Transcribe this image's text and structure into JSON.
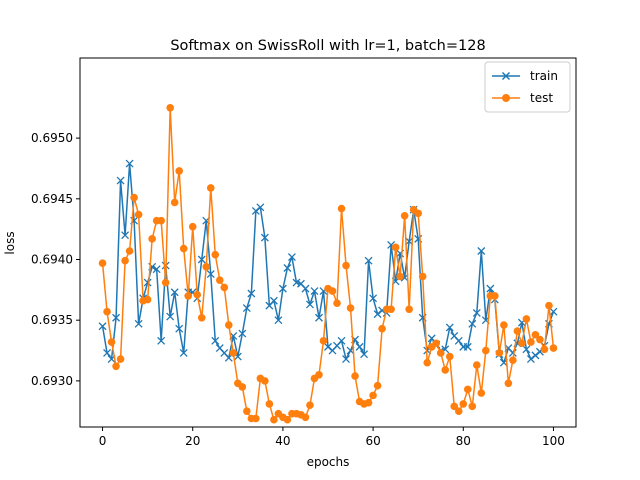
{
  "chart_data": {
    "type": "line",
    "title": "Softmax on SwissRoll with lr=1, batch=128",
    "xlabel": "epochs",
    "ylabel": "loss",
    "xlim": [
      -5,
      105
    ],
    "ylim": [
      0.69262,
      0.69566
    ],
    "xticks": [
      0,
      20,
      40,
      60,
      80,
      100
    ],
    "yticks": [
      0.693,
      0.6935,
      0.694,
      0.6945,
      0.695
    ],
    "ytick_labels": [
      "0.6930",
      "0.6935",
      "0.6940",
      "0.6945",
      "0.6950"
    ],
    "legend_position": "top-right",
    "series": [
      {
        "name": "train",
        "color": "#1f77b4",
        "marker": "x",
        "values": [
          0.69345,
          0.69323,
          0.69318,
          0.69352,
          0.69465,
          0.6942,
          0.69479,
          0.69432,
          0.69347,
          0.69368,
          0.69381,
          0.69394,
          0.69392,
          0.69333,
          0.69395,
          0.69353,
          0.69373,
          0.69343,
          0.69323,
          0.69373,
          0.69373,
          0.69368,
          0.694,
          0.69432,
          0.69388,
          0.69333,
          0.69327,
          0.69323,
          0.69319,
          0.69337,
          0.6932,
          0.69339,
          0.6936,
          0.69372,
          0.6944,
          0.69443,
          0.69418,
          0.69362,
          0.69366,
          0.6935,
          0.69376,
          0.69393,
          0.69402,
          0.69381,
          0.6938,
          0.69376,
          0.69363,
          0.69374,
          0.69352,
          0.69374,
          0.69328,
          0.69325,
          0.69329,
          0.69333,
          0.69318,
          0.69325,
          0.69334,
          0.69328,
          0.69322,
          0.69399,
          0.69368,
          0.69355,
          0.69358,
          0.69356,
          0.69412,
          0.69382,
          0.69405,
          0.69385,
          0.69415,
          0.69441,
          0.69417,
          0.69352,
          0.69325,
          0.69335,
          0.6933,
          0.69325,
          0.69326,
          0.69344,
          0.69337,
          0.69333,
          0.69328,
          0.69328,
          0.69347,
          0.69356,
          0.69407,
          0.6935,
          0.69376,
          0.69367,
          0.69322,
          0.69315,
          0.69327,
          0.69323,
          0.69331,
          0.69348,
          0.69326,
          0.69318,
          0.69321,
          0.69324,
          0.69329,
          0.69347,
          0.69357
        ]
      },
      {
        "name": "test",
        "color": "#ff7f0e",
        "marker": "o",
        "values": [
          0.69397,
          0.69357,
          0.69332,
          0.69312,
          0.69318,
          0.69399,
          0.69407,
          0.69451,
          0.69437,
          0.69366,
          0.69367,
          0.69417,
          0.69432,
          0.69432,
          0.69381,
          0.69525,
          0.69447,
          0.69473,
          0.69409,
          0.6937,
          0.69427,
          0.69371,
          0.69352,
          0.69394,
          0.69459,
          0.69404,
          0.69383,
          0.69377,
          0.69346,
          0.69323,
          0.69298,
          0.69295,
          0.69275,
          0.69269,
          0.69269,
          0.69302,
          0.693,
          0.69281,
          0.69268,
          0.69273,
          0.6927,
          0.69268,
          0.69273,
          0.69273,
          0.69272,
          0.6927,
          0.6928,
          0.69302,
          0.69305,
          0.69333,
          0.69376,
          0.69374,
          0.69364,
          0.69442,
          0.69395,
          0.6936,
          0.69304,
          0.69283,
          0.69281,
          0.69282,
          0.69288,
          0.69296,
          0.69343,
          0.69359,
          0.69359,
          0.6941,
          0.69386,
          0.69436,
          0.69359,
          0.69441,
          0.69438,
          0.69386,
          0.69315,
          0.69328,
          0.69331,
          0.69323,
          0.69309,
          0.6932,
          0.69279,
          0.69275,
          0.69281,
          0.69293,
          0.69279,
          0.69313,
          0.6929,
          0.69325,
          0.6937,
          0.6937,
          0.69323,
          0.69346,
          0.69298,
          0.69317,
          0.69341,
          0.69331,
          0.69351,
          0.69332,
          0.69338,
          0.69334,
          0.69326,
          0.69362,
          0.69327
        ]
      }
    ]
  }
}
